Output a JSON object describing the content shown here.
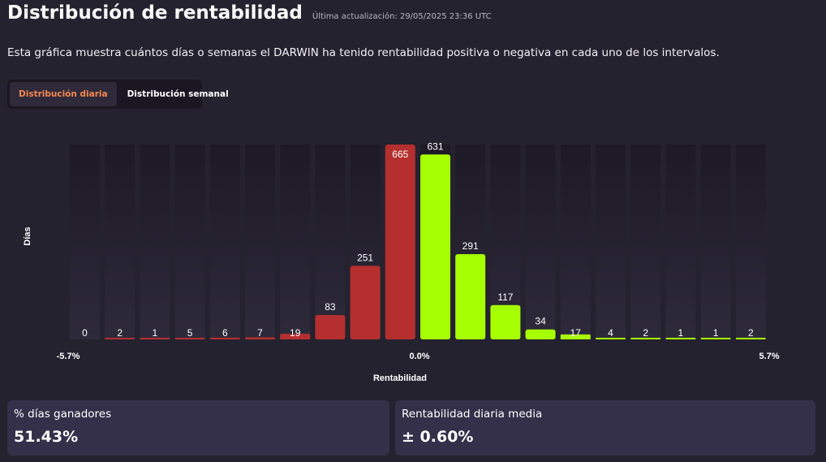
{
  "header": {
    "title": "Distribución de rentabilidad",
    "updated": "Última actualización: 29/05/2025 23:36 UTC"
  },
  "description": "Esta gráfica muestra cuántos días o semanas el DARWIN ha tenido rentabilidad positiva o negativa en cada uno de los intervalos.",
  "tabs": [
    {
      "label": "Distribución diaria",
      "active": true
    },
    {
      "label": "Distribución semanal",
      "active": false
    }
  ],
  "chart_data": {
    "type": "bar",
    "title": "",
    "xlabel": "Rentabilidad",
    "ylabel": "Días",
    "x_tick_labels": [
      {
        "label": "-5.7%",
        "bin": 0
      },
      {
        "label": "0.0%",
        "bin": 10
      },
      {
        "label": "5.7%",
        "bin": 20
      }
    ],
    "values": [
      0,
      2,
      1,
      5,
      6,
      7,
      19,
      83,
      251,
      665,
      631,
      291,
      117,
      34,
      17,
      4,
      2,
      1,
      1,
      2
    ],
    "negative_bins": 10,
    "colors": {
      "negative": "#b52f2f",
      "positive": "#a6ff00",
      "track_top": "#1d1926",
      "track_bottom": "#2d2a3a"
    },
    "ylim": [
      0,
      665
    ],
    "grid": false
  },
  "stats": [
    {
      "label": "% días ganadores",
      "value": "51.43%"
    },
    {
      "label": "Rentabilidad diaria media",
      "value": "± 0.60%"
    }
  ]
}
